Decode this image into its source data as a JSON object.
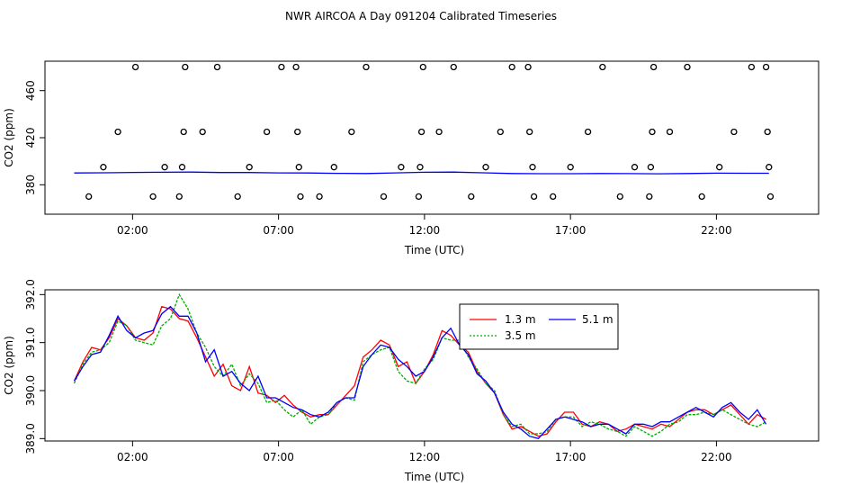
{
  "title": "NWR AIRCOA A  Day 091204  Calibrated Timeseries",
  "chart_data": [
    {
      "type": "scatter",
      "panel": "top",
      "xlabel": "Time (UTC)",
      "ylabel": "CO2 (ppm)",
      "xlim": [
        -1.0,
        25.5
      ],
      "ylim": [
        355,
        485
      ],
      "xticks": [
        2,
        7,
        12,
        17,
        22
      ],
      "xtick_labels": [
        "02:00",
        "07:00",
        "12:00",
        "17:00",
        "22:00"
      ],
      "yticks": [
        380,
        420,
        460
      ],
      "ytick_labels": [
        "380",
        "420",
        "460"
      ],
      "line": [
        [
          0.0,
          390.0
        ],
        [
          1.0,
          390.2
        ],
        [
          2.0,
          390.5
        ],
        [
          3.0,
          390.6
        ],
        [
          4.0,
          390.8
        ],
        [
          5.0,
          390.4
        ],
        [
          6.0,
          390.4
        ],
        [
          7.0,
          390.1
        ],
        [
          8.0,
          390.0
        ],
        [
          9.0,
          389.7
        ],
        [
          10.0,
          389.6
        ],
        [
          11.0,
          390.1
        ],
        [
          12.0,
          390.6
        ],
        [
          13.0,
          390.8
        ],
        [
          14.0,
          390.2
        ],
        [
          15.0,
          389.6
        ],
        [
          16.0,
          389.4
        ],
        [
          17.0,
          389.4
        ],
        [
          18.0,
          389.6
        ],
        [
          19.0,
          389.5
        ],
        [
          20.0,
          389.3
        ],
        [
          21.0,
          389.6
        ],
        [
          22.0,
          389.9
        ],
        [
          23.0,
          389.8
        ],
        [
          23.8,
          389.8
        ]
      ],
      "points": [
        [
          0.5,
          370
        ],
        [
          1.0,
          395
        ],
        [
          1.5,
          425
        ],
        [
          2.1,
          480
        ],
        [
          2.7,
          370
        ],
        [
          3.1,
          395
        ],
        [
          3.6,
          370
        ],
        [
          3.7,
          395
        ],
        [
          3.75,
          425
        ],
        [
          3.8,
          480
        ],
        [
          4.4,
          425
        ],
        [
          4.9,
          480
        ],
        [
          5.6,
          370
        ],
        [
          6.0,
          395
        ],
        [
          6.6,
          425
        ],
        [
          7.1,
          480
        ],
        [
          7.6,
          480
        ],
        [
          7.65,
          425
        ],
        [
          7.7,
          395
        ],
        [
          7.75,
          370
        ],
        [
          8.4,
          370
        ],
        [
          8.9,
          395
        ],
        [
          9.5,
          425
        ],
        [
          10.0,
          480
        ],
        [
          10.6,
          370
        ],
        [
          11.2,
          395
        ],
        [
          11.8,
          370
        ],
        [
          11.85,
          395
        ],
        [
          11.9,
          425
        ],
        [
          11.95,
          480
        ],
        [
          12.5,
          425
        ],
        [
          13.0,
          480
        ],
        [
          13.6,
          370
        ],
        [
          14.1,
          395
        ],
        [
          14.6,
          425
        ],
        [
          15.0,
          480
        ],
        [
          15.55,
          480
        ],
        [
          15.6,
          425
        ],
        [
          15.7,
          395
        ],
        [
          15.75,
          370
        ],
        [
          16.4,
          370
        ],
        [
          17.0,
          395
        ],
        [
          17.6,
          425
        ],
        [
          18.1,
          480
        ],
        [
          18.7,
          370
        ],
        [
          19.2,
          395
        ],
        [
          19.7,
          370
        ],
        [
          19.75,
          395
        ],
        [
          19.8,
          425
        ],
        [
          19.85,
          480
        ],
        [
          20.4,
          425
        ],
        [
          21.0,
          480
        ],
        [
          21.5,
          370
        ],
        [
          22.1,
          395
        ],
        [
          22.6,
          425
        ],
        [
          23.2,
          480
        ],
        [
          23.7,
          480
        ],
        [
          23.75,
          425
        ],
        [
          23.8,
          395
        ],
        [
          23.85,
          370
        ]
      ]
    },
    {
      "type": "line",
      "panel": "bottom",
      "xlabel": "Time (UTC)",
      "ylabel": "CO2 (ppm)",
      "xlim": [
        -1.0,
        25.5
      ],
      "ylim": [
        388.95,
        392.1
      ],
      "xticks": [
        2,
        7,
        12,
        17,
        22
      ],
      "xtick_labels": [
        "02:00",
        "07:00",
        "12:00",
        "17:00",
        "22:00"
      ],
      "yticks": [
        389.0,
        390.0,
        391.0,
        392.0
      ],
      "ytick_labels": [
        "389.0",
        "390.0",
        "391.0",
        "392.0"
      ],
      "x": [
        0.0,
        0.3,
        0.6,
        0.9,
        1.2,
        1.5,
        1.8,
        2.1,
        2.4,
        2.7,
        3.0,
        3.3,
        3.6,
        3.9,
        4.2,
        4.5,
        4.8,
        5.1,
        5.4,
        5.7,
        6.0,
        6.3,
        6.6,
        6.9,
        7.2,
        7.5,
        7.8,
        8.1,
        8.4,
        8.7,
        9.0,
        9.3,
        9.6,
        9.9,
        10.2,
        10.5,
        10.8,
        11.1,
        11.4,
        11.7,
        12.0,
        12.3,
        12.6,
        12.9,
        13.2,
        13.5,
        13.8,
        14.1,
        14.4,
        14.7,
        15.0,
        15.3,
        15.6,
        15.9,
        16.2,
        16.5,
        16.8,
        17.1,
        17.4,
        17.7,
        18.0,
        18.3,
        18.6,
        18.9,
        19.2,
        19.5,
        19.8,
        20.1,
        20.4,
        20.7,
        21.0,
        21.3,
        21.6,
        21.9,
        22.2,
        22.5,
        22.8,
        23.1,
        23.4,
        23.7
      ],
      "series": [
        {
          "name": "1.3 m",
          "color": "#ff0000",
          "values": [
            390.2,
            390.6,
            390.9,
            390.85,
            391.1,
            391.5,
            391.35,
            391.1,
            391.05,
            391.2,
            391.75,
            391.7,
            391.5,
            391.45,
            391.1,
            390.7,
            390.3,
            390.55,
            390.1,
            390.0,
            390.5,
            389.95,
            389.9,
            389.75,
            389.9,
            389.7,
            389.55,
            389.45,
            389.5,
            389.5,
            389.7,
            389.9,
            390.1,
            390.7,
            390.85,
            391.05,
            390.95,
            390.5,
            390.6,
            390.15,
            390.4,
            390.75,
            391.25,
            391.15,
            390.95,
            390.8,
            390.4,
            390.15,
            389.95,
            389.5,
            389.2,
            389.25,
            389.15,
            389.05,
            389.1,
            389.35,
            389.55,
            389.55,
            389.3,
            389.25,
            389.35,
            389.3,
            389.15,
            389.2,
            389.3,
            389.25,
            389.2,
            389.3,
            389.25,
            389.4,
            389.55,
            389.6,
            389.6,
            389.5,
            389.6,
            389.7,
            389.5,
            389.3,
            389.5,
            389.4
          ]
        },
        {
          "name": "3.5 m",
          "color": "#00aa00",
          "values": [
            390.15,
            390.55,
            390.8,
            390.85,
            391.0,
            391.45,
            391.35,
            391.05,
            391.0,
            390.95,
            391.35,
            391.5,
            392.0,
            391.7,
            391.2,
            390.9,
            390.5,
            390.3,
            390.55,
            390.1,
            390.35,
            390.15,
            389.75,
            389.8,
            389.6,
            389.45,
            389.6,
            389.3,
            389.45,
            389.5,
            389.75,
            389.85,
            389.8,
            390.6,
            390.75,
            390.85,
            390.9,
            390.4,
            390.2,
            390.15,
            390.45,
            390.65,
            391.1,
            391.05,
            391.05,
            390.7,
            390.45,
            390.15,
            390.0,
            389.5,
            389.25,
            389.3,
            389.1,
            389.1,
            389.15,
            389.4,
            389.45,
            389.45,
            389.25,
            389.35,
            389.3,
            389.2,
            389.15,
            389.05,
            389.25,
            389.15,
            389.05,
            389.15,
            389.3,
            389.35,
            389.5,
            389.5,
            389.55,
            389.5,
            389.6,
            389.5,
            389.4,
            389.3,
            389.25,
            389.35
          ]
        },
        {
          "name": "5.1 m",
          "color": "#0000ff",
          "values": [
            390.2,
            390.5,
            390.75,
            390.8,
            391.15,
            391.55,
            391.25,
            391.1,
            391.2,
            391.25,
            391.6,
            391.75,
            391.55,
            391.55,
            391.2,
            390.6,
            390.85,
            390.3,
            390.4,
            390.15,
            390.0,
            390.3,
            389.85,
            389.85,
            389.75,
            389.65,
            389.6,
            389.5,
            389.45,
            389.55,
            389.75,
            389.85,
            389.85,
            390.5,
            390.75,
            390.95,
            390.9,
            390.65,
            390.5,
            390.3,
            390.4,
            390.7,
            391.1,
            391.3,
            390.95,
            390.75,
            390.35,
            390.2,
            389.95,
            389.55,
            389.3,
            389.2,
            389.05,
            389.0,
            389.2,
            389.4,
            389.45,
            389.4,
            389.35,
            389.25,
            389.3,
            389.3,
            389.2,
            389.1,
            389.3,
            389.3,
            389.25,
            389.35,
            389.35,
            389.45,
            389.55,
            389.65,
            389.55,
            389.45,
            389.65,
            389.75,
            389.55,
            389.4,
            389.6,
            389.3
          ]
        }
      ],
      "legend_position": "top-center"
    }
  ]
}
